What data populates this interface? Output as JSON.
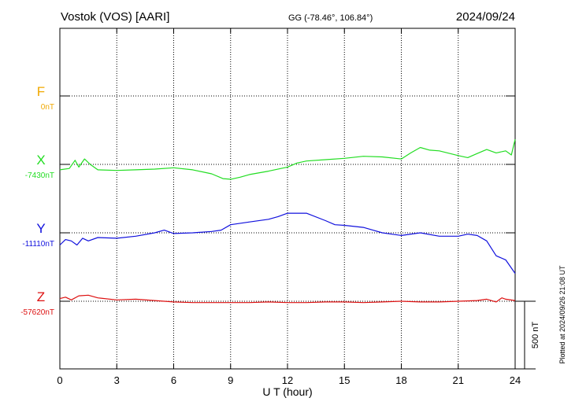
{
  "header": {
    "station": "Vostok (VOS)  [AARI]",
    "coords": "GG (-78.46°, 106.84°)",
    "date": "2024/09/24"
  },
  "footer": {
    "plotted": "Plotted at 2024/09/26 21:08 UT",
    "scale_label": "500 nT"
  },
  "colors": {
    "F": "#f0a800",
    "X": "#22dd22",
    "Y": "#1010dd",
    "Z": "#dd1010",
    "axis": "#000000"
  },
  "chart_data": {
    "type": "line",
    "xlabel": "U T (hour)",
    "xlim": [
      0,
      24
    ],
    "x_ticks": [
      "0",
      "3",
      "6",
      "9",
      "12",
      "15",
      "18",
      "21",
      "24"
    ],
    "scale_nT": 500,
    "series": [
      {
        "name": "F",
        "baseline_label": "0nT",
        "baseline_nT": 0,
        "x": [],
        "y": []
      },
      {
        "name": "X",
        "baseline_label": "-7430nT",
        "baseline_nT": -7430,
        "x": [
          0,
          0.5,
          0.8,
          1.0,
          1.3,
          1.6,
          2,
          3,
          4,
          5,
          6,
          7,
          8,
          8.6,
          9,
          9.5,
          10,
          11,
          12,
          12.5,
          13,
          14,
          15,
          16,
          17,
          18,
          18.5,
          19,
          19.5,
          20,
          21,
          21.5,
          22,
          22.5,
          23,
          23.5,
          23.8,
          24
        ],
        "y": [
          -7470,
          -7460,
          -7400,
          -7450,
          -7390,
          -7430,
          -7470,
          -7475,
          -7470,
          -7465,
          -7455,
          -7470,
          -7500,
          -7535,
          -7540,
          -7525,
          -7505,
          -7480,
          -7450,
          -7420,
          -7405,
          -7395,
          -7385,
          -7370,
          -7375,
          -7390,
          -7345,
          -7305,
          -7325,
          -7330,
          -7365,
          -7380,
          -7350,
          -7320,
          -7345,
          -7330,
          -7360,
          -7245
        ]
      },
      {
        "name": "Y",
        "baseline_label": "-11110nT",
        "baseline_nT": -11110,
        "x": [
          0,
          0.3,
          0.6,
          0.9,
          1.2,
          1.5,
          2,
          3,
          4,
          5,
          5.5,
          6,
          7,
          8,
          8.5,
          9,
          10,
          11,
          11.5,
          12,
          13,
          14,
          14.5,
          15,
          16,
          16.5,
          17,
          17.5,
          18,
          19,
          20,
          21,
          21.5,
          22,
          22.5,
          23,
          23.5,
          24
        ],
        "y": [
          -11200,
          -11160,
          -11170,
          -11200,
          -11150,
          -11170,
          -11145,
          -11150,
          -11135,
          -11110,
          -11090,
          -11115,
          -11110,
          -11100,
          -11090,
          -11050,
          -11030,
          -11010,
          -10990,
          -10965,
          -10965,
          -11020,
          -11050,
          -11055,
          -11070,
          -11090,
          -11110,
          -11120,
          -11130,
          -11110,
          -11135,
          -11135,
          -11120,
          -11130,
          -11170,
          -11280,
          -11310,
          -11410
        ]
      },
      {
        "name": "Z",
        "baseline_label": "-57620nT",
        "baseline_nT": -57620,
        "x": [
          0,
          0.3,
          0.6,
          1,
          1.5,
          2,
          3,
          4,
          5,
          6,
          7,
          8,
          9,
          10,
          11,
          12,
          13,
          14,
          15,
          16,
          17,
          18,
          19,
          20,
          21,
          22,
          22.5,
          23,
          23.3,
          23.5,
          24
        ],
        "y": [
          -57600,
          -57590,
          -57610,
          -57580,
          -57575,
          -57595,
          -57610,
          -57605,
          -57615,
          -57625,
          -57630,
          -57630,
          -57630,
          -57630,
          -57625,
          -57630,
          -57630,
          -57625,
          -57625,
          -57630,
          -57625,
          -57620,
          -57625,
          -57625,
          -57620,
          -57615,
          -57605,
          -57625,
          -57595,
          -57605,
          -57615
        ]
      }
    ]
  }
}
